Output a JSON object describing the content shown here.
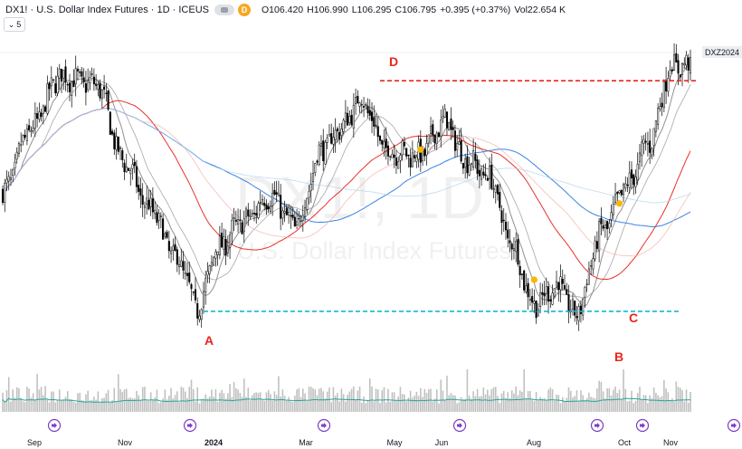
{
  "header": {
    "symbol": "DX1!",
    "name": "U.S. Dollar Index Futures",
    "interval": "1D",
    "exchange": "ICEUS",
    "badge": "D",
    "open_key": "O",
    "open": "106.420",
    "high_key": "H",
    "high": "106.990",
    "low_key": "L",
    "low": "106.295",
    "close_key": "C",
    "close": "106.795",
    "change": "+0.395 (+0.37%)",
    "vol_key": "Vol",
    "vol": "22.654 K",
    "collapse_count": "5"
  },
  "price_tag": "DXZ2024",
  "watermark": {
    "big": "DX1!, 1D",
    "small": "U.S. Dollar Index Futures"
  },
  "colors": {
    "up": "#ffffff",
    "down": "#000000",
    "candle_outline": "#000000",
    "resistance_line": "#e8261c",
    "support_line": "#12b8d4",
    "ma_fast": "#8a8a8a",
    "ma_red": "#e8261c",
    "ma_blue": "#2f7de1",
    "ma_light_red": "#f2a8a0",
    "ma_light_blue": "#a8cdea",
    "volume": "#c0c0c0",
    "volume_ma": "#26a69a",
    "marker": "#f6b800",
    "point_label": "#e8261c"
  },
  "icons": {
    "event": "arrow-right-circle-icon"
  },
  "chart_data": {
    "type": "candlestick",
    "x_labels": [
      "Sep",
      "Nov",
      "2024",
      "Mar",
      "May",
      "Jun",
      "Aug",
      "Oct",
      "Nov"
    ],
    "points": [
      {
        "label": "A",
        "price": 100.2
      },
      {
        "label": "B",
        "price": 100.2
      },
      {
        "label": "C",
        "price": 100.2
      },
      {
        "label": "D",
        "price": 106.4
      }
    ],
    "resistance": 106.4,
    "support": 100.2,
    "ylim": [
      99.2,
      107.5
    ],
    "anchors": [
      {
        "i": 0,
        "p": 103.4
      },
      {
        "i": 14,
        "p": 105.1
      },
      {
        "i": 28,
        "p": 106.5
      },
      {
        "i": 46,
        "p": 106.3
      },
      {
        "i": 60,
        "p": 104.2
      },
      {
        "i": 72,
        "p": 103.0
      },
      {
        "i": 86,
        "p": 101.6
      },
      {
        "i": 96,
        "p": 100.3
      },
      {
        "i": 106,
        "p": 101.9
      },
      {
        "i": 118,
        "p": 102.6
      },
      {
        "i": 132,
        "p": 103.3
      },
      {
        "i": 144,
        "p": 102.5
      },
      {
        "i": 158,
        "p": 104.6
      },
      {
        "i": 168,
        "p": 105.2
      },
      {
        "i": 176,
        "p": 105.9
      },
      {
        "i": 190,
        "p": 104.5
      },
      {
        "i": 205,
        "p": 104.4
      },
      {
        "i": 218,
        "p": 105.3
      },
      {
        "i": 228,
        "p": 104.3
      },
      {
        "i": 240,
        "p": 103.8
      },
      {
        "i": 250,
        "p": 102.1
      },
      {
        "i": 262,
        "p": 100.4
      },
      {
        "i": 274,
        "p": 100.9
      },
      {
        "i": 282,
        "p": 100.1
      },
      {
        "i": 296,
        "p": 102.4
      },
      {
        "i": 308,
        "p": 103.6
      },
      {
        "i": 318,
        "p": 104.7
      },
      {
        "i": 330,
        "p": 106.8
      }
    ],
    "markers": [
      {
        "i": 206,
        "p": 104.55
      },
      {
        "i": 262,
        "p": 101.05
      },
      {
        "i": 304,
        "p": 103.1
      }
    ],
    "moving_averages": [
      {
        "period": 10,
        "color": "ma_fast",
        "dark": true
      },
      {
        "period": 20,
        "color": "ma_fast",
        "dark": false
      },
      {
        "period": 50,
        "color": "ma_red",
        "dark": true
      },
      {
        "period": 100,
        "color": "ma_blue",
        "dark": true
      },
      {
        "period": 70,
        "color": "ma_light_red",
        "dark": false
      },
      {
        "period": 140,
        "color": "ma_light_blue",
        "dark": false
      }
    ],
    "volume_max": 100,
    "event_count": 7
  }
}
